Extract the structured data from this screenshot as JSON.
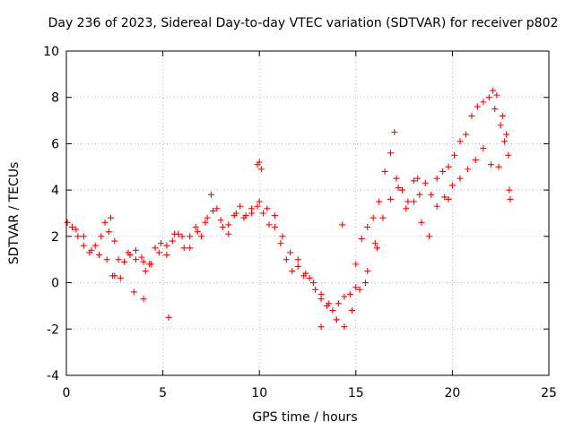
{
  "chart_data": {
    "type": "scatter",
    "title": "Day 236 of 2023, Sidereal Day-to-day VTEC variation (SDTVAR) for receiver p802",
    "xlabel": "GPS time / hours",
    "ylabel": "SDTVAR / TECUs",
    "xlim": [
      0,
      25
    ],
    "ylim": [
      -4,
      10
    ],
    "x_ticks": [
      "0",
      "5",
      "10",
      "15",
      "20",
      "25"
    ],
    "y_ticks": [
      "-4",
      "-2",
      "0",
      "2",
      "4",
      "6",
      "8",
      "10"
    ],
    "grid": true,
    "marker": "+",
    "series": [
      {
        "name": "SDTVAR",
        "color": "#ff0000",
        "x": [
          0.05,
          0.3,
          0.6,
          0.9,
          1.2,
          1.5,
          1.8,
          2.0,
          2.2,
          2.5,
          2.7,
          3.0,
          3.3,
          3.6,
          3.9,
          4.1,
          4.3,
          4.6,
          4.9,
          5.2,
          5.5,
          5.8,
          6.1,
          6.4,
          6.7,
          7.0,
          7.3,
          7.5,
          7.8,
          8.1,
          8.4,
          8.7,
          9.0,
          9.3,
          9.6,
          9.9,
          10.2,
          10.5,
          10.8,
          11.1,
          11.4,
          11.7,
          12.0,
          12.3,
          12.6,
          12.9,
          13.2,
          13.5,
          13.8,
          14.1,
          14.4,
          14.7,
          15.0,
          15.3,
          15.6,
          15.9,
          16.2,
          16.5,
          16.8,
          17.1,
          17.4,
          17.7,
          18.0,
          18.3,
          18.6,
          18.9,
          19.2,
          19.5,
          19.8,
          20.1,
          20.4,
          20.7,
          21.0,
          21.3,
          21.6,
          21.9,
          22.2,
          22.5,
          22.8,
          0.5,
          0.9,
          1.3,
          1.7,
          2.1,
          2.4,
          2.8,
          3.2,
          3.6,
          4.0,
          4.4,
          4.8,
          5.2,
          5.6,
          6.0,
          6.4,
          6.8,
          7.2,
          7.6,
          8.0,
          8.4,
          8.8,
          9.2,
          9.6,
          10.0,
          10.4,
          10.8,
          11.2,
          11.6,
          12.0,
          12.4,
          12.8,
          13.2,
          13.6,
          14.0,
          14.4,
          14.8,
          15.2,
          15.6,
          16.0,
          16.4,
          16.8,
          17.2,
          17.6,
          18.0,
          18.4,
          18.8,
          19.2,
          19.6,
          20.0,
          20.4,
          20.8,
          21.2,
          21.6,
          22.0,
          22.4,
          22.7,
          2.3,
          2.5,
          3.5,
          4.0,
          5.3,
          9.9,
          10.0,
          10.1,
          13.2,
          14.0,
          14.3,
          15.0,
          15.5,
          16.1,
          17.0,
          18.2,
          19.8,
          22.1,
          22.3,
          22.6,
          22.9,
          23.0,
          22.95
        ],
        "y": [
          2.6,
          2.4,
          2.0,
          1.6,
          1.3,
          1.6,
          2.0,
          2.6,
          2.2,
          1.8,
          1.0,
          0.9,
          1.2,
          1.4,
          1.1,
          0.5,
          0.8,
          1.5,
          1.7,
          1.2,
          1.8,
          2.1,
          1.5,
          2.0,
          2.4,
          2.0,
          2.8,
          3.8,
          3.2,
          2.4,
          2.1,
          2.9,
          3.3,
          2.9,
          3.2,
          3.3,
          3.0,
          2.5,
          2.4,
          1.7,
          1.0,
          0.5,
          0.7,
          0.3,
          0.2,
          -0.3,
          -0.7,
          -1.0,
          -1.2,
          -0.9,
          -0.6,
          -0.5,
          0.8,
          1.9,
          2.4,
          2.8,
          3.5,
          4.8,
          5.6,
          4.5,
          4.0,
          3.5,
          4.4,
          3.8,
          4.3,
          3.8,
          4.5,
          4.8,
          5.0,
          5.5,
          6.1,
          6.4,
          7.2,
          7.6,
          7.8,
          8.0,
          7.5,
          6.8,
          6.4,
          2.3,
          2.0,
          1.4,
          1.2,
          1.0,
          0.3,
          0.2,
          1.3,
          1.0,
          0.9,
          0.8,
          1.3,
          1.6,
          2.1,
          2.0,
          1.5,
          2.2,
          2.6,
          3.1,
          2.7,
          2.5,
          3.0,
          2.8,
          3.0,
          3.5,
          3.2,
          2.9,
          2.0,
          1.3,
          1.0,
          0.4,
          0.0,
          -0.5,
          -0.9,
          -1.6,
          -1.9,
          -1.2,
          -0.3,
          0.5,
          1.7,
          2.8,
          3.6,
          4.1,
          3.2,
          3.5,
          2.6,
          2.0,
          3.3,
          3.7,
          4.2,
          4.5,
          4.9,
          5.3,
          5.8,
          5.1,
          5.0,
          6.1,
          2.8,
          0.3,
          -0.4,
          -0.7,
          -1.5,
          5.1,
          5.2,
          4.9,
          -1.9,
          -1.6,
          2.5,
          -0.2,
          0.0,
          1.5,
          6.5,
          4.5,
          3.6,
          8.3,
          8.1,
          7.2,
          5.5,
          3.6,
          4.0
        ]
      }
    ]
  }
}
